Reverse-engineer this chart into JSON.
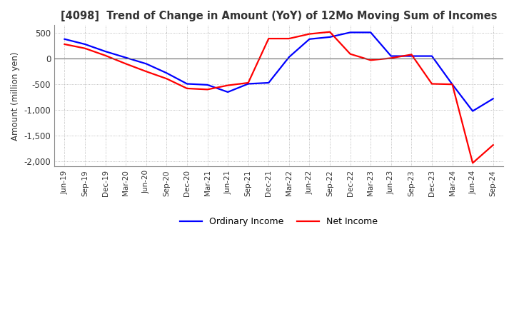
{
  "title": "[4098]  Trend of Change in Amount (YoY) of 12Mo Moving Sum of Incomes",
  "ylabel": "Amount (million yen)",
  "ylim": [
    -2100,
    650
  ],
  "yticks": [
    500,
    0,
    -500,
    -1000,
    -1500,
    -2000
  ],
  "background_color": "#ffffff",
  "grid_color": "#aaaaaa",
  "ordinary_income_color": "#0000ff",
  "net_income_color": "#ff0000",
  "legend_labels": [
    "Ordinary Income",
    "Net Income"
  ],
  "x_labels": [
    "Jun-19",
    "Sep-19",
    "Dec-19",
    "Mar-20",
    "Jun-20",
    "Sep-20",
    "Dec-20",
    "Mar-21",
    "Jun-21",
    "Sep-21",
    "Dec-21",
    "Mar-22",
    "Jun-22",
    "Sep-22",
    "Dec-22",
    "Mar-23",
    "Jun-23",
    "Sep-23",
    "Dec-23",
    "Mar-24",
    "Jun-24",
    "Sep-24"
  ],
  "ordinary_income": [
    380,
    280,
    140,
    20,
    -100,
    -280,
    -490,
    -510,
    -650,
    -490,
    -470,
    30,
    380,
    420,
    510,
    510,
    50,
    50,
    50,
    -500,
    -1020,
    -780
  ],
  "net_income": [
    280,
    200,
    60,
    -100,
    -250,
    -390,
    -580,
    -600,
    -520,
    -470,
    390,
    390,
    480,
    520,
    90,
    -30,
    10,
    80,
    -490,
    -500,
    -2030,
    -1680
  ]
}
